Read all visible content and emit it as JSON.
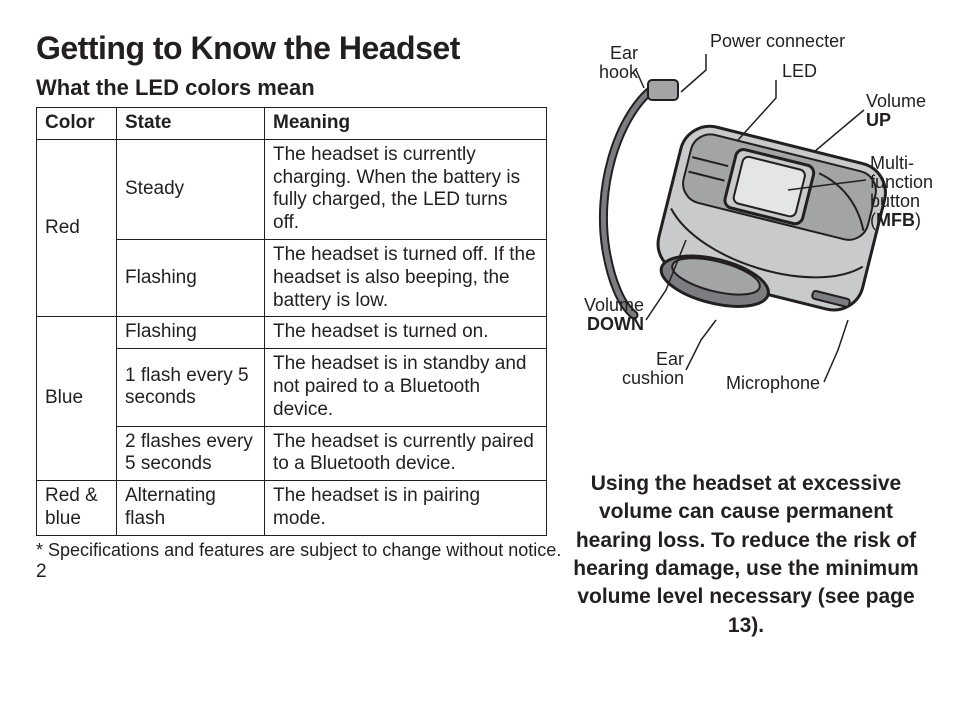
{
  "title": "Getting to Know the Headset",
  "subtitle": "What the LED colors mean",
  "table": {
    "headers": [
      "Color",
      "State",
      "Meaning"
    ],
    "rows": [
      {
        "color": "Red",
        "state": "Steady",
        "meaning": "The headset is currently charging. When the battery is fully charged, the LED turns off.",
        "rowspan": 2
      },
      {
        "color": "",
        "state": "Flashing",
        "meaning": "The headset is turned off. If the headset is also beeping, the battery is low."
      },
      {
        "color": "Blue",
        "state": "Flashing",
        "meaning": "The headset is turned on.",
        "rowspan": 3
      },
      {
        "color": "",
        "state": "1 flash every 5 seconds",
        "meaning": "The headset is in standby and not paired to a Bluetooth device."
      },
      {
        "color": "",
        "state": "2 flashes every 5 seconds",
        "meaning": "The headset is currently paired to a Bluetooth device."
      },
      {
        "color": "Red & blue",
        "state": "Alternating flash",
        "meaning": "The headset is in pairing mode."
      }
    ]
  },
  "footnote": "* Specifications and features are subject to change without notice.",
  "pageNumber": "2",
  "diagram": {
    "labels": {
      "earHook": "Ear\nhook",
      "powerConnecter": "Power connecter",
      "led": "LED",
      "volumeUp": "Volume",
      "volumeUpBold": "UP",
      "mfb1": "Multi-",
      "mfb2": "function",
      "mfb3": "button",
      "mfbParen": "(MFB)",
      "volumeDown": "Volume",
      "volumeDownBold": "DOWN",
      "earCushion": "Ear\ncushion",
      "microphone": "Microphone"
    },
    "colors": {
      "stroke": "#231f20",
      "bodyLight": "#c9cacb",
      "bodyMid": "#a3a4a6",
      "bodyDark": "#7c7d80",
      "hook": "#7c7d80"
    }
  },
  "warning": "Using the headset at excessive volume can cause permanent hearing loss. To reduce the risk of hearing damage, use the minimum volume level necessary (see page 13)."
}
